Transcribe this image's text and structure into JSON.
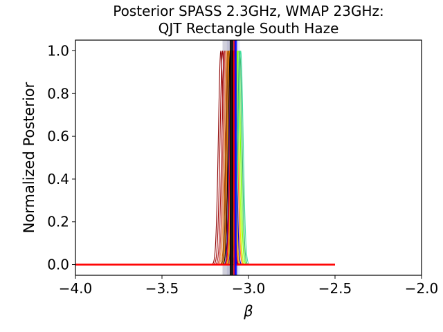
{
  "chart_data": {
    "type": "line",
    "title_lines": [
      "Posterior SPASS 2.3GHz, WMAP 23GHz:",
      "QJT Rectangle South Haze"
    ],
    "xlabel": "β",
    "ylabel": "Normalized Posterior",
    "xlim": [
      -4.0,
      -2.0
    ],
    "ylim": [
      -0.05,
      1.05
    ],
    "x_ticks": [
      -4.0,
      -3.5,
      -3.0,
      -2.5,
      -2.0
    ],
    "x_tick_labels": [
      "−4.0",
      "−3.5",
      "−3.0",
      "−2.5",
      "−2.0"
    ],
    "y_ticks": [
      0.0,
      0.2,
      0.4,
      0.6,
      0.8,
      1.0
    ],
    "y_tick_labels": [
      "0.0",
      "0.2",
      "0.4",
      "0.6",
      "0.8",
      "1.0"
    ],
    "grid": false,
    "curve_x_range": [
      -4.0,
      -2.5
    ],
    "peak_value": 1.0,
    "series": [
      {
        "peak": -3.16,
        "width": 0.014,
        "color": "#8b0000"
      },
      {
        "peak": -3.15,
        "width": 0.014,
        "color": "#a00000"
      },
      {
        "peak": -3.14,
        "width": 0.014,
        "color": "#b22222"
      },
      {
        "peak": -3.135,
        "width": 0.013,
        "color": "#cd5c5c"
      },
      {
        "peak": -3.13,
        "width": 0.013,
        "color": "#e9967a"
      },
      {
        "peak": -3.125,
        "width": 0.013,
        "color": "#f4a460"
      },
      {
        "peak": -3.12,
        "width": 0.012,
        "color": "#c06000"
      },
      {
        "peak": -3.115,
        "width": 0.012,
        "color": "#8b4513"
      },
      {
        "peak": -3.11,
        "width": 0.012,
        "color": "#ff8c00"
      },
      {
        "peak": -3.105,
        "width": 0.012,
        "color": "#000000"
      },
      {
        "peak": -3.1,
        "width": 0.011,
        "color": "#4b0082"
      },
      {
        "peak": -3.095,
        "width": 0.011,
        "color": "#ff0000"
      },
      {
        "peak": -3.09,
        "width": 0.011,
        "color": "#ffa500"
      },
      {
        "peak": -3.085,
        "width": 0.011,
        "color": "#daa520"
      },
      {
        "peak": -3.08,
        "width": 0.011,
        "color": "#0000cd"
      },
      {
        "peak": -3.075,
        "width": 0.012,
        "color": "#ff6347"
      },
      {
        "peak": -3.07,
        "width": 0.012,
        "color": "#ffd700"
      },
      {
        "peak": -3.065,
        "width": 0.012,
        "color": "#adff2f"
      },
      {
        "peak": -3.06,
        "width": 0.013,
        "color": "#7fff00"
      },
      {
        "peak": -3.055,
        "width": 0.013,
        "color": "#90ee90"
      },
      {
        "peak": -3.05,
        "width": 0.013,
        "color": "#3cb371"
      },
      {
        "peak": -3.045,
        "width": 0.014,
        "color": "#40e0a0"
      }
    ],
    "highlight_series": {
      "peak": -3.088,
      "width": 0.004,
      "color": "#ff0000"
    },
    "reference_bands": [
      {
        "center": -3.105,
        "half_width": 0.045,
        "color": "#7a7a9a",
        "opacity": 0.35
      },
      {
        "center": -3.095,
        "half_width": 0.03,
        "color": "#a0a0c8",
        "opacity": 0.35
      },
      {
        "center": -3.07,
        "half_width": 0.02,
        "color": "#b0b8f0",
        "opacity": 0.35
      }
    ],
    "reference_lines": [
      {
        "x": -3.105,
        "color": "#000000"
      },
      {
        "x": -3.098,
        "color": "#1c1c1c"
      },
      {
        "x": -3.092,
        "color": "#000000"
      },
      {
        "x": -3.078,
        "color": "#0000ff"
      },
      {
        "x": -3.072,
        "color": "#0000ff"
      },
      {
        "x": -3.084,
        "color": "#ff0000"
      }
    ]
  }
}
